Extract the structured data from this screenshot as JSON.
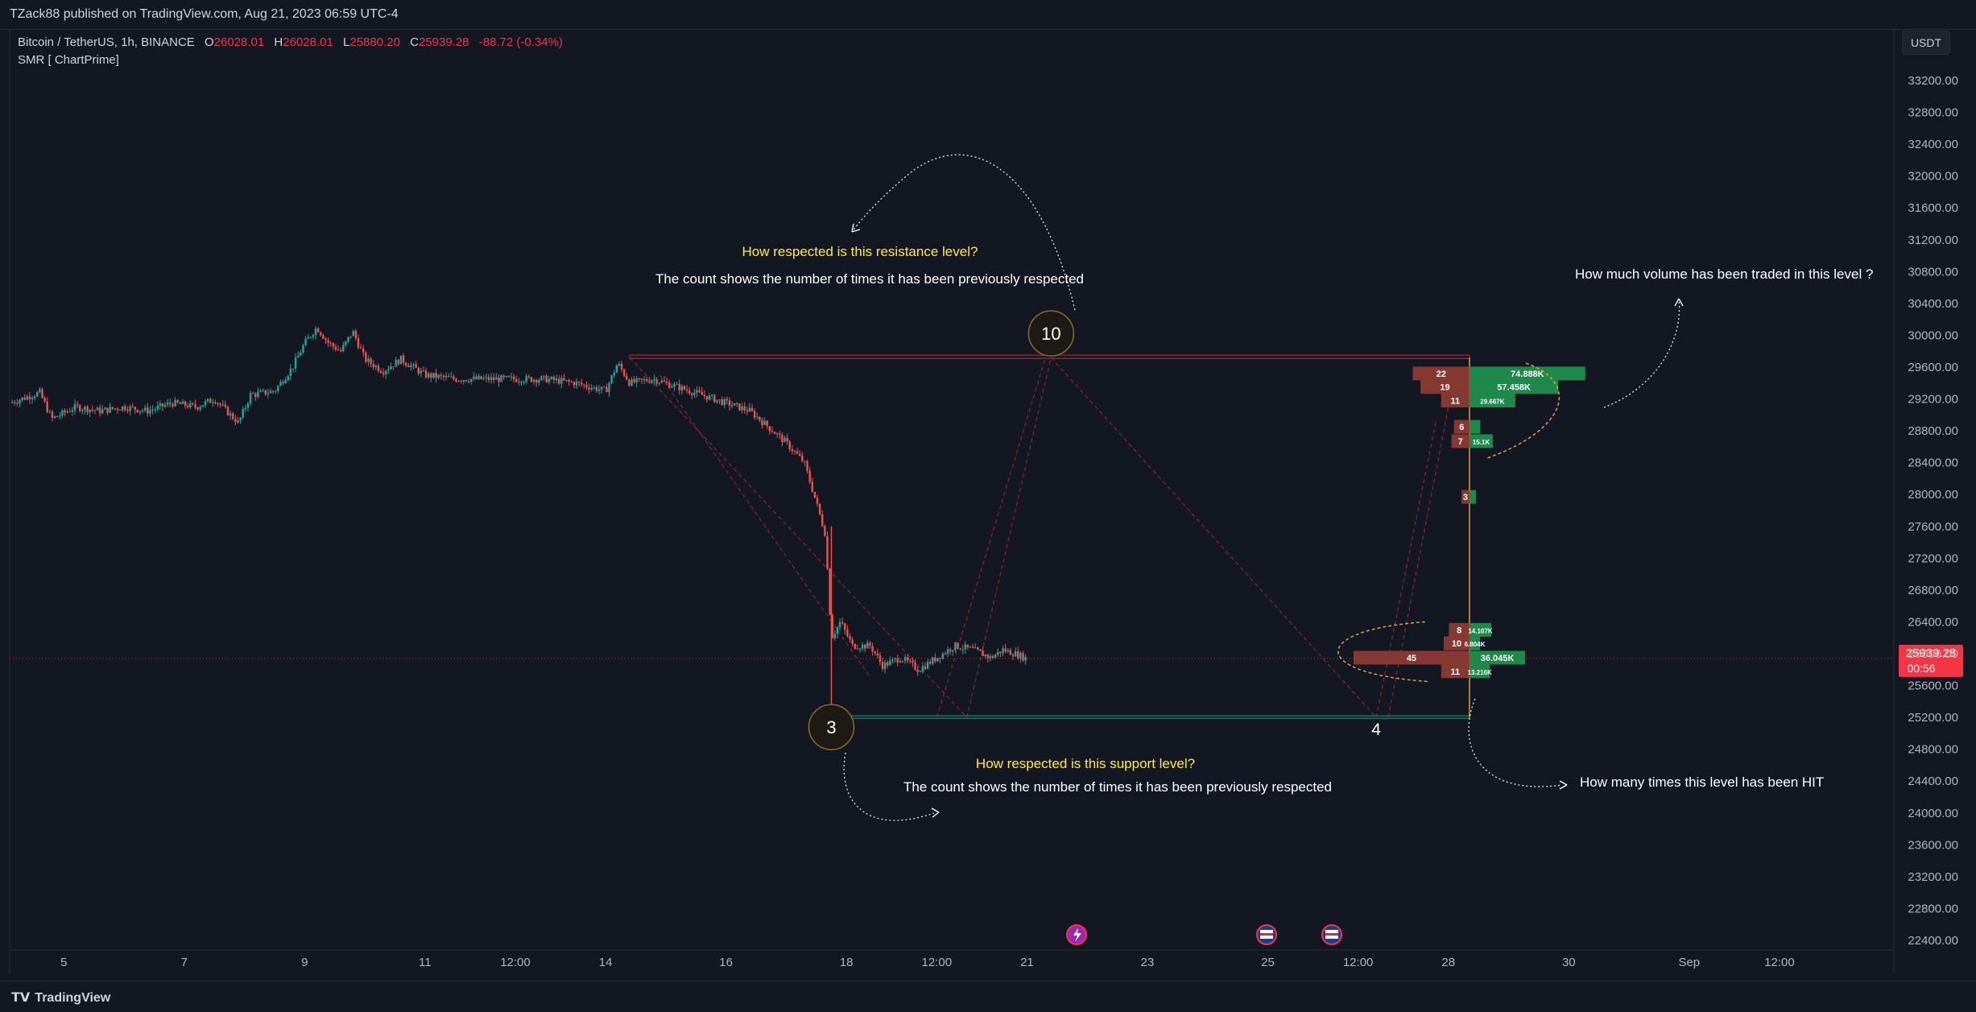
{
  "header": {
    "published": "TZack88 published on TradingView.com, Aug 21, 2023 06:59 UTC-4",
    "currency": "USDT"
  },
  "legend": {
    "symbol": "Bitcoin / TetherUS, 1h, BINANCE",
    "open_label": "O",
    "open": "26028.01",
    "high_label": "H",
    "high": "26028.01",
    "low_label": "L",
    "low": "25880.20",
    "close_label": "C",
    "close": "25939.28",
    "change": "-88.72 (-0.34%)",
    "indicator": "SMR [ ChartPrime]"
  },
  "price_tag": {
    "price": "25939.28",
    "countdown": "00:56"
  },
  "footer": {
    "brand": "TradingView"
  },
  "colors": {
    "background": "#131722",
    "up": "#26a69a",
    "down": "#ef5350",
    "resistance": "#b22833",
    "support": "#1b8a6a",
    "annotation_yellow": "#ffeb3b",
    "price_tag": "#f23645"
  },
  "chart_data": {
    "type": "candlestick",
    "y_axis_ticks": [
      33200,
      32800,
      32400,
      32000,
      31600,
      31200,
      30800,
      30400,
      30000,
      29600,
      29200,
      28800,
      28400,
      28000,
      27600,
      27200,
      26800,
      26400,
      26000,
      25600,
      25200,
      24800,
      24400,
      24000,
      23600,
      23200,
      22800,
      22400
    ],
    "ylim": [
      22200,
      33500
    ],
    "x_tick_labels": [
      {
        "label": "5",
        "day": 5
      },
      {
        "label": "7",
        "day": 7
      },
      {
        "label": "9",
        "day": 9
      },
      {
        "label": "11",
        "day": 11
      },
      {
        "label": "12:00",
        "day": 12.5
      },
      {
        "label": "14",
        "day": 14
      },
      {
        "label": "16",
        "day": 16
      },
      {
        "label": "18",
        "day": 18
      },
      {
        "label": "12:00",
        "day": 19.5
      },
      {
        "label": "21",
        "day": 21
      },
      {
        "label": "23",
        "day": 23
      },
      {
        "label": "25",
        "day": 25
      },
      {
        "label": "12:00",
        "day": 26.5
      },
      {
        "label": "28",
        "day": 28
      },
      {
        "label": "30",
        "day": 30
      },
      {
        "label": "Sep",
        "day": 32
      },
      {
        "label": "12:00",
        "day": 33.5
      }
    ],
    "xlim_days": [
      4.1,
      35.4
    ],
    "price_path": [
      [
        4.1,
        29150
      ],
      [
        4.6,
        29280
      ],
      [
        4.8,
        28950
      ],
      [
        5.2,
        29100
      ],
      [
        5.6,
        29050
      ],
      [
        6.0,
        29100
      ],
      [
        6.4,
        29050
      ],
      [
        6.8,
        29150
      ],
      [
        7.2,
        29100
      ],
      [
        7.5,
        29200
      ],
      [
        7.7,
        29050
      ],
      [
        7.9,
        28900
      ],
      [
        8.1,
        29250
      ],
      [
        8.5,
        29300
      ],
      [
        8.8,
        29600
      ],
      [
        9.0,
        29900
      ],
      [
        9.2,
        30100
      ],
      [
        9.4,
        29900
      ],
      [
        9.6,
        29800
      ],
      [
        9.8,
        30050
      ],
      [
        10.0,
        29700
      ],
      [
        10.3,
        29550
      ],
      [
        10.6,
        29700
      ],
      [
        11.0,
        29500
      ],
      [
        11.5,
        29450
      ],
      [
        12.0,
        29450
      ],
      [
        12.5,
        29450
      ],
      [
        13.0,
        29450
      ],
      [
        13.5,
        29400
      ],
      [
        14.0,
        29300
      ],
      [
        14.2,
        29650
      ],
      [
        14.4,
        29400
      ],
      [
        14.8,
        29450
      ],
      [
        15.2,
        29350
      ],
      [
        15.6,
        29250
      ],
      [
        16.0,
        29150
      ],
      [
        16.4,
        29050
      ],
      [
        16.7,
        28850
      ],
      [
        17.0,
        28650
      ],
      [
        17.3,
        28400
      ],
      [
        17.5,
        27900
      ],
      [
        17.65,
        27500
      ],
      [
        17.75,
        26200
      ],
      [
        17.9,
        26400
      ],
      [
        18.1,
        26100
      ],
      [
        18.4,
        26100
      ],
      [
        18.6,
        25850
      ],
      [
        18.9,
        25950
      ],
      [
        19.2,
        25800
      ],
      [
        19.5,
        25950
      ],
      [
        19.8,
        26100
      ],
      [
        20.1,
        26050
      ],
      [
        20.4,
        25950
      ],
      [
        20.6,
        26050
      ],
      [
        20.8,
        26000
      ],
      [
        21.0,
        25940
      ]
    ],
    "resistance_level": {
      "price": 29720,
      "start_day": 14.4,
      "end_day": 28.35,
      "touches": "10"
    },
    "support_level": {
      "price": 25200,
      "start_day": 17.75,
      "end_day": 28.35,
      "touches": "3",
      "secondary_count": "4"
    },
    "volume_profile": [
      {
        "price": 29520,
        "hits": "22",
        "volume": "74.888K",
        "hits_val": 22,
        "vol_val": 74.888
      },
      {
        "price": 29350,
        "hits": "19",
        "volume": "57.458K",
        "hits_val": 19,
        "vol_val": 57.458
      },
      {
        "price": 29180,
        "hits": "11",
        "volume": "29.667K",
        "hits_val": 11,
        "vol_val": 29.667
      },
      {
        "price": 28850,
        "hits": "6",
        "volume": "",
        "hits_val": 6,
        "vol_val": 7.0
      },
      {
        "price": 28670,
        "hits": "7",
        "volume": "15.1K",
        "hits_val": 7,
        "vol_val": 15.1
      },
      {
        "price": 27970,
        "hits": "3",
        "volume": "",
        "hits_val": 3,
        "vol_val": 3.0
      },
      {
        "price": 26300,
        "hits": "8",
        "volume": "14.107K",
        "hits_val": 8,
        "vol_val": 14.107
      },
      {
        "price": 26130,
        "hits": "10",
        "volume": "6.804K",
        "hits_val": 10,
        "vol_val": 6.804
      },
      {
        "price": 25950,
        "hits": "45",
        "volume": "36.045K",
        "hits_val": 45,
        "vol_val": 36.045
      },
      {
        "price": 25780,
        "hits": "11",
        "volume": "13.216K",
        "hits_val": 11,
        "vol_val": 13.216
      }
    ],
    "annotations": {
      "resistance_title": "How respected is this resistance level?",
      "resistance_body": "The count shows the number of times it has been previously respected",
      "support_title": "How respected is this support level?",
      "support_body": "The count shows the number of times it has been previously respected",
      "volume_note": "How much volume has been traded in this level ?",
      "hits_note": "How many times this level has been HIT"
    }
  }
}
